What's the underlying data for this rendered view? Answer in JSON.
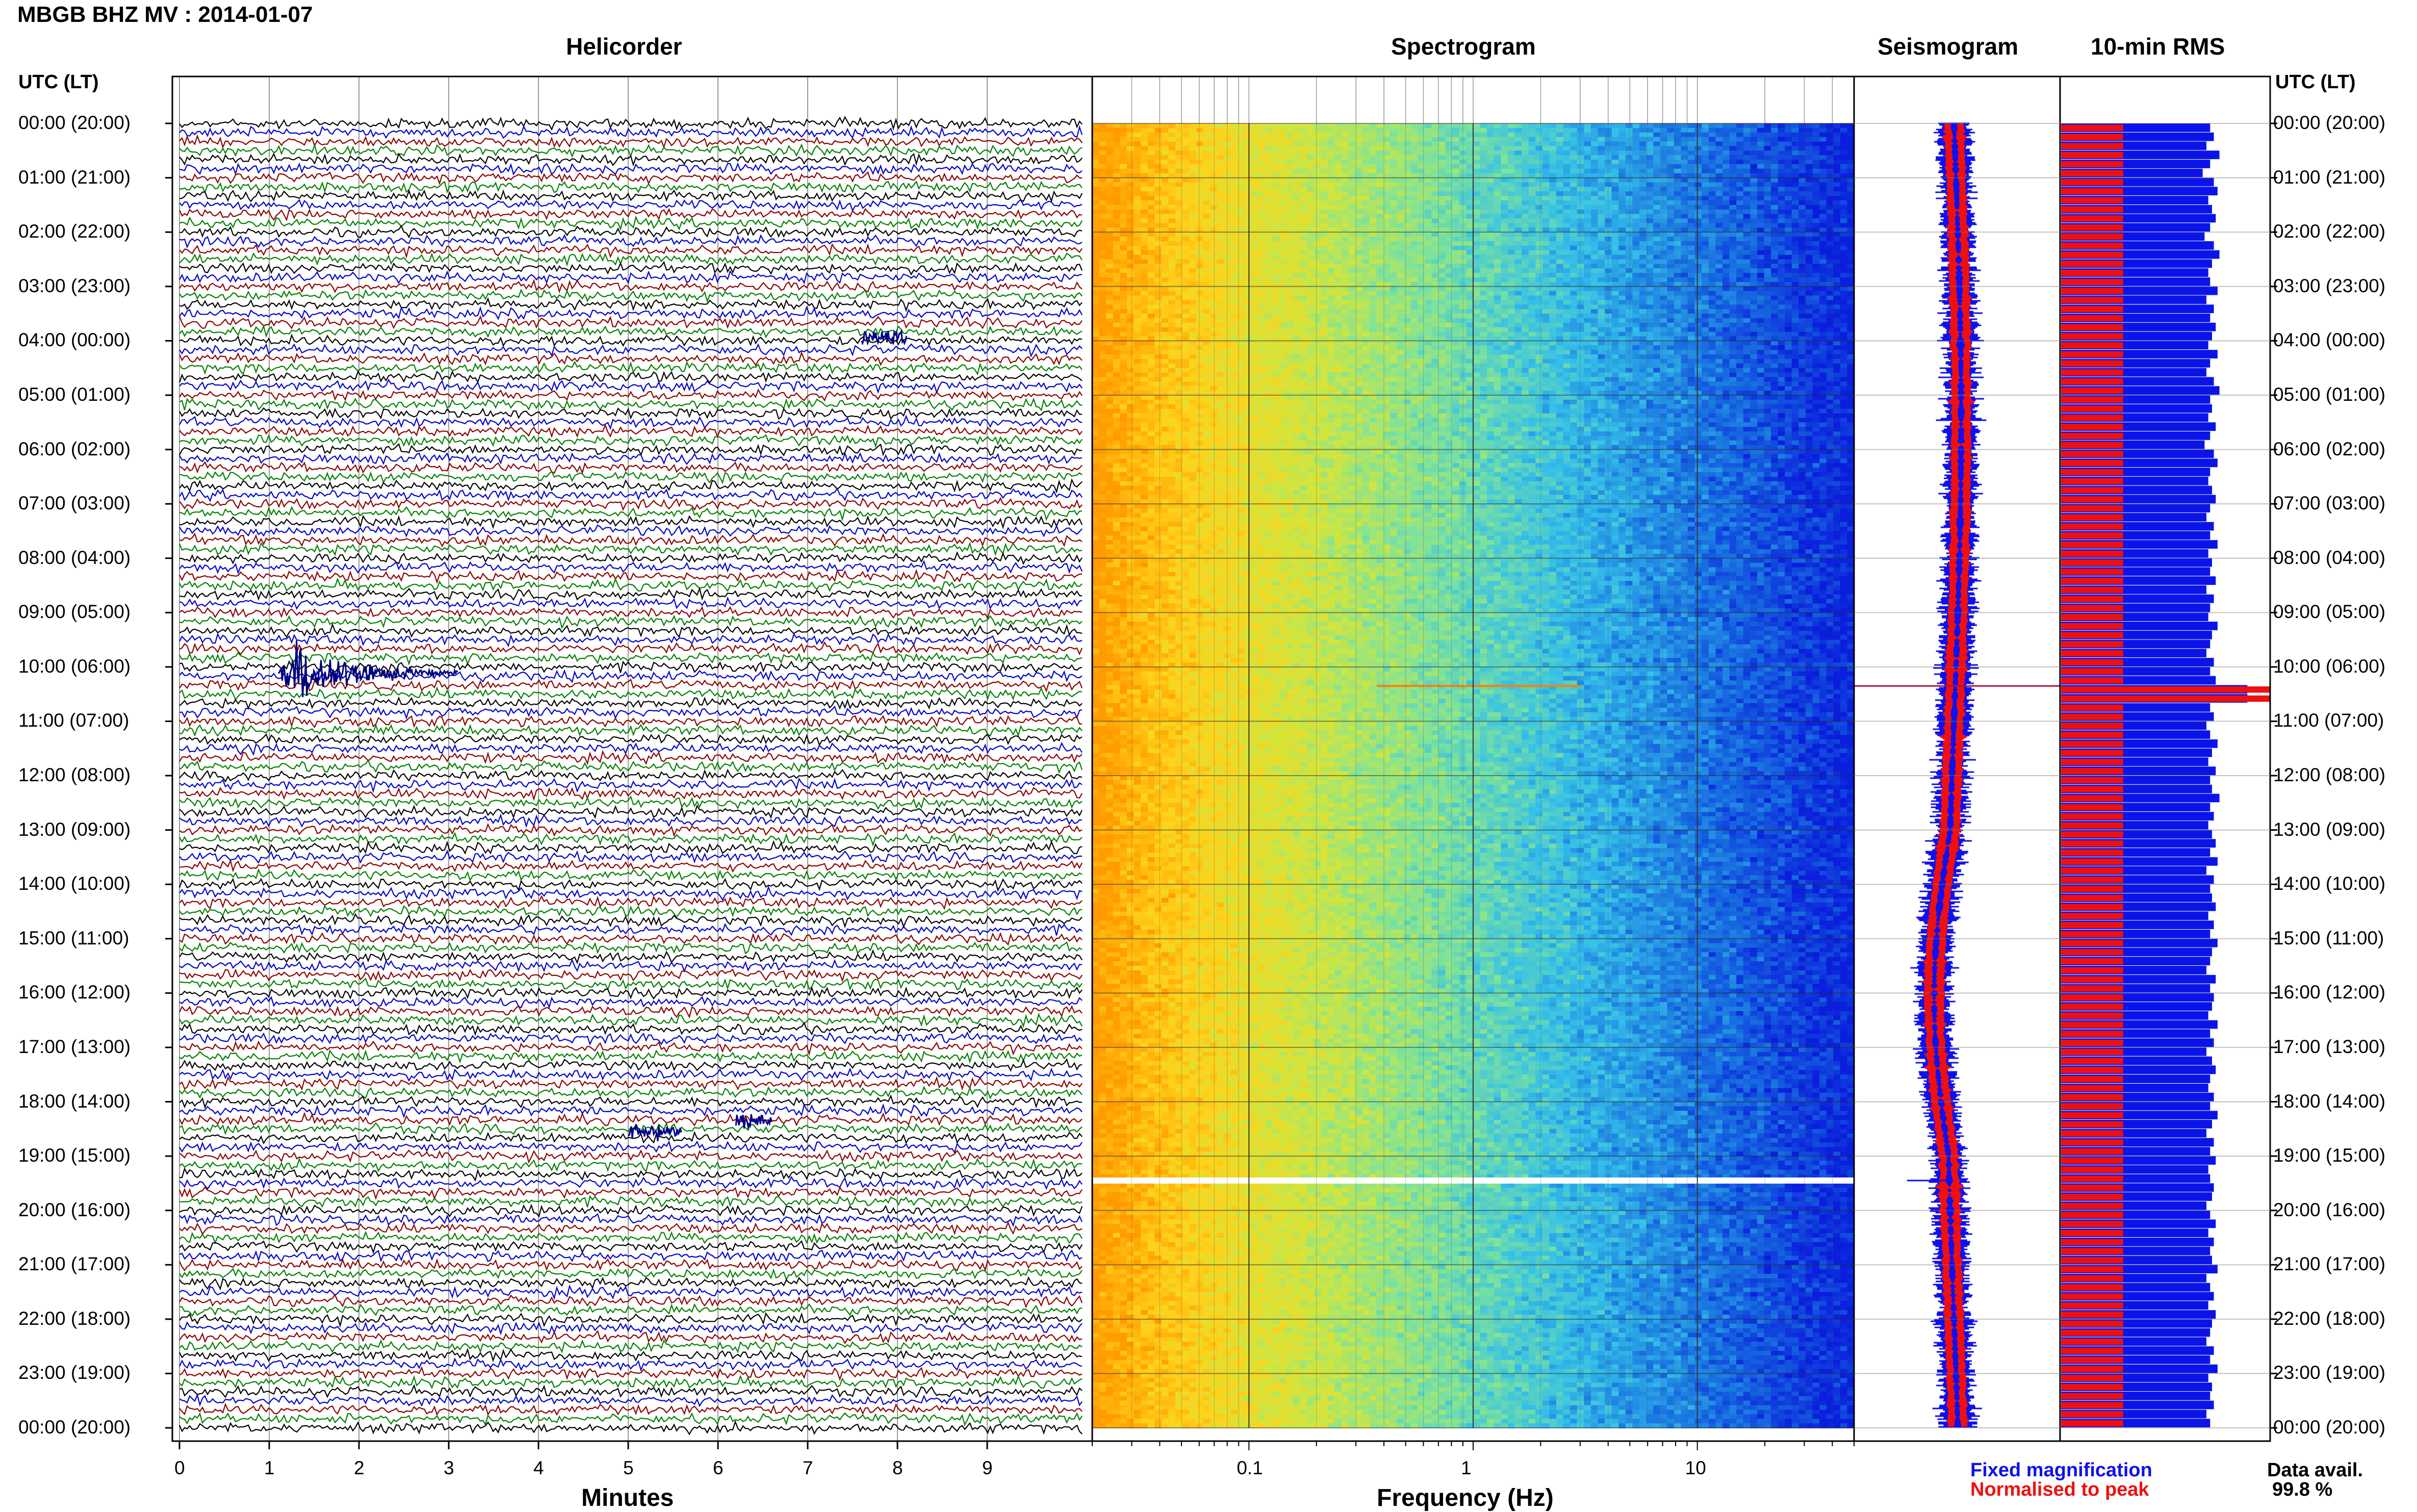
{
  "header": {
    "title": "MBGB BHZ MV : 2014-01-07"
  },
  "panels": {
    "helicorder": "Helicorder",
    "spectrogram": "Spectrogram",
    "seismogram": "Seismogram",
    "rms": "10-min RMS"
  },
  "axes": {
    "left_header": "UTC (LT)",
    "right_header": "UTC (LT)",
    "minutes_label": "Minutes",
    "frequency_label": "Frequency (Hz)",
    "minutes_ticks": [
      "0",
      "1",
      "2",
      "3",
      "4",
      "5",
      "6",
      "7",
      "8",
      "9"
    ],
    "frequency_ticks": [
      "0.1",
      "1",
      "10"
    ]
  },
  "legend": {
    "fixed": "Fixed magnification",
    "normalised": "Normalised to peak",
    "fixed_color": "#1010ee",
    "normalised_color": "#ee1010",
    "data_avail_label": "Data avail.",
    "data_avail_value": "99.8 %"
  },
  "time_labels": [
    "00:00 (20:00)",
    "01:00 (21:00)",
    "02:00 (22:00)",
    "03:00 (23:00)",
    "04:00 (00:00)",
    "05:00 (01:00)",
    "06:00 (02:00)",
    "07:00 (03:00)",
    "08:00 (04:00)",
    "09:00 (05:00)",
    "10:00 (06:00)",
    "11:00 (07:00)",
    "12:00 (08:00)",
    "13:00 (09:00)",
    "14:00 (10:00)",
    "15:00 (11:00)",
    "16:00 (12:00)",
    "17:00 (13:00)",
    "18:00 (14:00)",
    "19:00 (15:00)",
    "20:00 (16:00)",
    "21:00 (17:00)",
    "22:00 (18:00)",
    "23:00 (19:00)",
    "00:00 (20:00)"
  ],
  "chart_data": {
    "type": "heatmap",
    "helicorder": {
      "trace_colors": [
        "#000000",
        "#0000cc",
        "#8b0000",
        "#008000"
      ],
      "x_range_minutes": [
        0,
        10
      ],
      "event": {
        "hour_utc": 10,
        "minute_start": 1.1,
        "minute_end": 3.1
      }
    },
    "spectrogram": {
      "x_scale": "log",
      "x_range_hz": [
        0.02,
        50
      ],
      "gap_hour_utc": 19.45,
      "colormap": [
        "#ff9a00",
        "#ffd21a",
        "#cfe640",
        "#7fe39a",
        "#35c0e8",
        "#1870e0",
        "#0a1edc"
      ]
    },
    "seismogram": {
      "colors": {
        "fixed": "#1010ee",
        "normalised": "#ee1010"
      },
      "spike_hour_utc": 10.35
    },
    "rms": {
      "interval_minutes": 10,
      "fixed_relative": [
        0.8,
        0.82,
        0.78,
        0.85,
        0.8,
        0.76,
        0.82,
        0.84,
        0.79,
        0.81,
        0.83,
        0.8,
        0.77,
        0.82,
        0.85,
        0.81,
        0.79,
        0.8,
        0.84,
        0.78,
        0.82,
        0.8,
        0.83,
        0.81,
        0.79,
        0.84,
        0.8,
        0.78,
        0.82,
        0.85,
        0.8,
        0.81,
        0.79,
        0.83,
        0.8,
        0.77,
        0.82,
        0.84,
        0.8,
        0.79,
        0.81,
        0.83,
        0.8,
        0.78,
        0.82,
        0.8,
        0.84,
        0.79,
        0.81,
        0.8,
        0.83,
        0.78,
        0.82,
        0.8,
        0.79,
        0.84,
        0.81,
        0.8,
        0.78,
        0.82,
        0.8,
        0.83,
        1.0,
        1.0,
        0.8,
        0.82,
        0.78,
        0.8,
        0.84,
        0.81,
        0.79,
        0.83,
        0.8,
        0.81,
        0.85,
        0.8,
        0.82,
        0.79,
        0.81,
        0.83,
        0.8,
        0.84,
        0.78,
        0.82,
        0.8,
        0.81,
        0.83,
        0.79,
        0.82,
        0.8,
        0.84,
        0.81,
        0.8,
        0.78,
        0.83,
        0.8,
        0.82,
        0.81,
        0.79,
        0.84,
        0.8,
        0.82,
        0.78,
        0.81,
        0.83,
        0.8,
        0.79,
        0.82,
        0.8,
        0.84,
        0.81,
        0.78,
        0.82,
        0.8,
        0.83,
        0.79,
        0.8,
        0.82,
        0.81,
        0.78,
        0.8,
        0.83,
        0.79,
        0.82,
        0.8,
        0.81,
        0.84,
        0.78,
        0.8,
        0.82,
        0.79,
        0.83,
        0.81,
        0.8,
        0.78,
        0.82,
        0.8,
        0.84,
        0.79,
        0.81,
        0.8,
        0.82,
        0.78,
        0.8
      ],
      "normalised_relative": 0.3
    }
  }
}
